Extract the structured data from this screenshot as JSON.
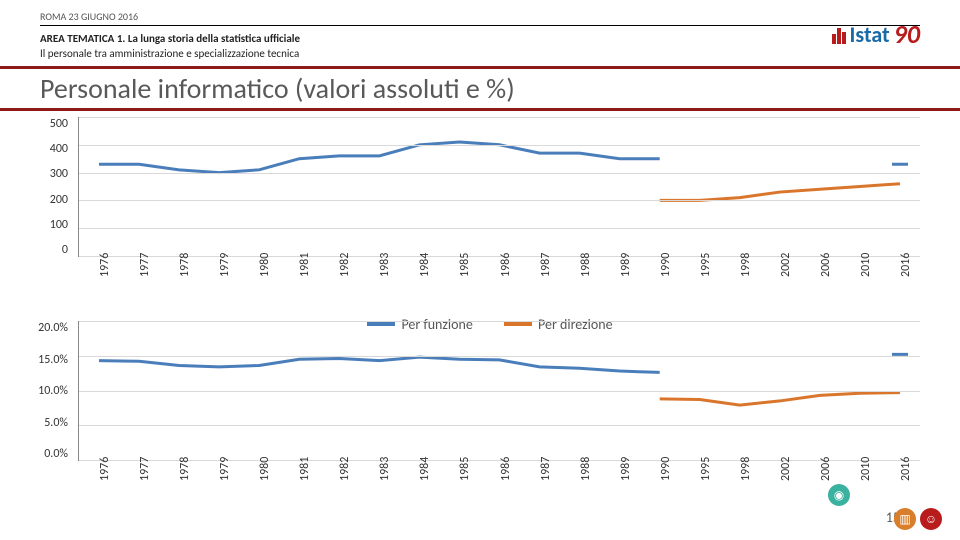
{
  "header": {
    "date": "ROMA 23 GIUGNO 2016",
    "area_bold": "AREA TEMATICA 1. La lunga storia della statistica ufficiale",
    "subline": "Il personale tra amministrazione e specializzazione tecnica",
    "title": "Personale informatico (valori assoluti e %)"
  },
  "logo": {
    "text1": "Istat",
    "text2": "90"
  },
  "page_number": "15",
  "chart_top": {
    "type": "line",
    "ylim": [
      0,
      500
    ],
    "yticks": [
      0,
      100,
      200,
      300,
      400,
      500
    ],
    "grid_color": "#d9d9d9",
    "background_color": "#ffffff",
    "x_labels": [
      "1976",
      "1977",
      "1978",
      "1979",
      "1980",
      "1981",
      "1982",
      "1983",
      "1984",
      "1985",
      "1986",
      "1987",
      "1988",
      "1989",
      "1990",
      "1995",
      "1998",
      "2002",
      "2006",
      "2010",
      "2016"
    ],
    "series": [
      {
        "name": "Per funzione",
        "color": "#4a7ebb",
        "line_width": 3,
        "data": [
          330,
          330,
          310,
          300,
          310,
          350,
          360,
          360,
          400,
          410,
          400,
          370,
          370,
          350,
          350,
          null,
          null,
          null,
          null,
          null,
          330
        ]
      },
      {
        "name": "Per direzione",
        "color": "#d9762b",
        "line_width": 3,
        "data": [
          null,
          null,
          null,
          null,
          null,
          null,
          null,
          null,
          null,
          null,
          null,
          null,
          null,
          null,
          200,
          200,
          210,
          230,
          240,
          250,
          260
        ]
      }
    ],
    "x_label_fontsize": 12,
    "y_label_fontsize": 12
  },
  "chart_bottom": {
    "type": "line",
    "ylim": [
      0,
      20
    ],
    "yticks_labels": [
      "0.0%",
      "5.0%",
      "10.0%",
      "15.0%",
      "20.0%"
    ],
    "yticks_values": [
      0,
      5,
      10,
      15,
      20
    ],
    "grid_color": "#d9d9d9",
    "x_labels": [
      "1976",
      "1977",
      "1978",
      "1979",
      "1980",
      "1981",
      "1982",
      "1983",
      "1984",
      "1985",
      "1986",
      "1987",
      "1988",
      "1989",
      "1990",
      "1995",
      "1998",
      "2002",
      "2006",
      "2010",
      "2016"
    ],
    "series": [
      {
        "name": "Per funzione",
        "color": "#4a7ebb",
        "line_width": 3,
        "data": [
          14.3,
          14.2,
          13.6,
          13.4,
          13.6,
          14.5,
          14.6,
          14.3,
          14.8,
          14.5,
          14.4,
          13.4,
          13.2,
          12.8,
          12.6,
          null,
          null,
          null,
          null,
          null,
          15.2
        ]
      },
      {
        "name": "Per direzione",
        "color": "#d9762b",
        "line_width": 3,
        "data": [
          null,
          null,
          null,
          null,
          null,
          null,
          null,
          null,
          null,
          null,
          null,
          null,
          null,
          null,
          8.8,
          8.7,
          7.9,
          8.5,
          9.3,
          9.6,
          9.7
        ]
      }
    ]
  },
  "legend": {
    "items": [
      {
        "label": "Per funzione",
        "color": "#4a7ebb"
      },
      {
        "label": "Per direzione",
        "color": "#d9762b"
      }
    ]
  }
}
